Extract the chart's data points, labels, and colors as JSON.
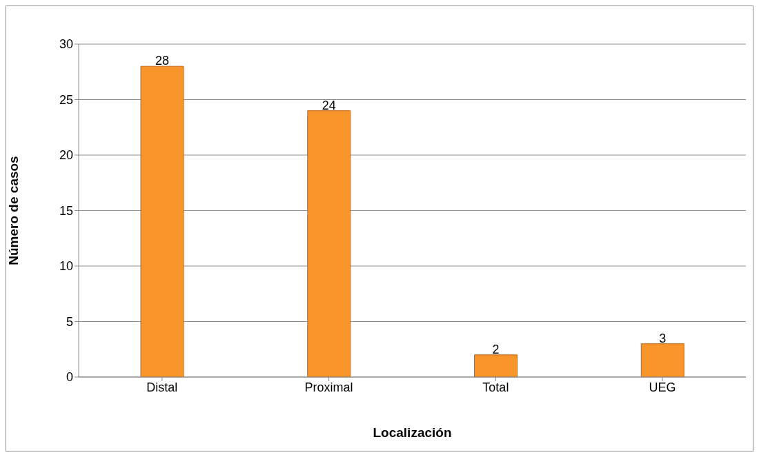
{
  "chart_data": {
    "type": "bar",
    "xlabel": "Localización",
    "ylabel": "Número de casos",
    "categories": [
      "Distal",
      "Proximal",
      "Total",
      "UEG"
    ],
    "values": [
      28,
      24,
      2,
      3
    ],
    "color": "#f7952a",
    "ylim": [
      0,
      30
    ],
    "yticks": [
      0,
      5,
      10,
      15,
      20,
      25,
      30
    ],
    "grid": "y",
    "data_labels": true,
    "legend": false
  }
}
